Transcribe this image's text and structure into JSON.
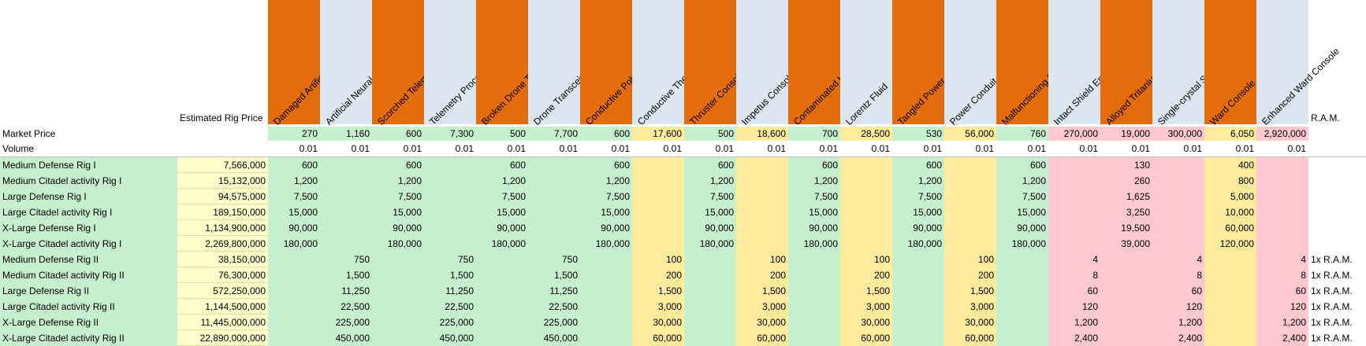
{
  "colors": {
    "orange": "#e46c0a",
    "lightblue": "#dce6f1",
    "green": "#c6efce",
    "yellow": "#ffeb9c",
    "pink": "#ffc7ce",
    "lightyellow": "#ffffcc"
  },
  "header": {
    "estimated_label": "Estimated Rig Price",
    "ram_label": "R.A.M.",
    "market_price_label": "Market Price",
    "volume_label": "Volume"
  },
  "columns": [
    {
      "name": "Damaged Artificial Neural Network",
      "head": "orange",
      "price": "270",
      "price_color": "green",
      "volume": "0.01",
      "body": "green"
    },
    {
      "name": "Artificial Neural Network",
      "head": "lightblue",
      "price": "1,160",
      "price_color": "green",
      "volume": "0.01",
      "body": "green"
    },
    {
      "name": "Scorched Telemetry Processor",
      "head": "orange",
      "price": "600",
      "price_color": "green",
      "volume": "0.01",
      "body": "green"
    },
    {
      "name": "Telemetry Processor",
      "head": "lightblue",
      "price": "7,300",
      "price_color": "green",
      "volume": "0.01",
      "body": "green"
    },
    {
      "name": "Broken Drone Transceiver",
      "head": "orange",
      "price": "500",
      "price_color": "green",
      "volume": "0.01",
      "body": "green"
    },
    {
      "name": "Drone Transceiver",
      "head": "lightblue",
      "price": "7,700",
      "price_color": "green",
      "volume": "0.01",
      "body": "green"
    },
    {
      "name": "Conductive Polymer",
      "head": "orange",
      "price": "600",
      "price_color": "green",
      "volume": "0.01",
      "body": "green"
    },
    {
      "name": "Conductive Thermoplastic",
      "head": "lightblue",
      "price": "17,600",
      "price_color": "yellow",
      "volume": "0.01",
      "body": "yellow"
    },
    {
      "name": "Thruster Console",
      "head": "orange",
      "price": "500",
      "price_color": "green",
      "volume": "0.01",
      "body": "green"
    },
    {
      "name": "Impetus Console",
      "head": "lightblue",
      "price": "18,600",
      "price_color": "yellow",
      "volume": "0.01",
      "body": "yellow"
    },
    {
      "name": "Contaminated Lorentz Fluid",
      "head": "orange",
      "price": "700",
      "price_color": "green",
      "volume": "0.01",
      "body": "green"
    },
    {
      "name": "Lorentz Fluid",
      "head": "lightblue",
      "price": "28,500",
      "price_color": "yellow",
      "volume": "0.01",
      "body": "yellow"
    },
    {
      "name": "Tangled Power Conduit",
      "head": "orange",
      "price": "530",
      "price_color": "green",
      "volume": "0.01",
      "body": "green"
    },
    {
      "name": "Power Conduit",
      "head": "lightblue",
      "price": "56,000",
      "price_color": "yellow",
      "volume": "0.01",
      "body": "yellow"
    },
    {
      "name": "Malfunctioning Shield Emitter",
      "head": "orange",
      "price": "760",
      "price_color": "green",
      "volume": "0.01",
      "body": "green"
    },
    {
      "name": "Intact Shield Emitter",
      "head": "lightblue",
      "price": "270,000",
      "price_color": "pink",
      "volume": "0.01",
      "body": "pink"
    },
    {
      "name": "Alloyed Tritanium Bar",
      "head": "orange",
      "price": "19,000",
      "price_color": "pink",
      "volume": "0.01",
      "body": "pink"
    },
    {
      "name": "Single-crystal Superalloy I-beam",
      "head": "lightblue",
      "price": "300,000",
      "price_color": "pink",
      "volume": "0.01",
      "body": "pink"
    },
    {
      "name": "Ward Console",
      "head": "orange",
      "price": "6,050",
      "price_color": "yellow",
      "volume": "0.01",
      "body": "yellow"
    },
    {
      "name": "Enhanced Ward Console",
      "head": "lightblue",
      "price": "2,920,000",
      "price_color": "pink",
      "volume": "0.01",
      "body": "pink"
    }
  ],
  "rows": [
    {
      "name": "Medium Defense Rig I",
      "price": "7,566,000",
      "cells": [
        "600",
        "",
        "600",
        "",
        "600",
        "",
        "600",
        "",
        "600",
        "",
        "600",
        "",
        "600",
        "",
        "600",
        "",
        "130",
        "",
        "400",
        ""
      ],
      "ram_qty": "",
      "ram_label": ""
    },
    {
      "name": "Medium Citadel activity Rig I",
      "price": "15,132,000",
      "cells": [
        "1,200",
        "",
        "1,200",
        "",
        "1,200",
        "",
        "1,200",
        "",
        "1,200",
        "",
        "1,200",
        "",
        "1,200",
        "",
        "1,200",
        "",
        "260",
        "",
        "800",
        ""
      ],
      "ram_qty": "",
      "ram_label": ""
    },
    {
      "name": "Large Defense Rig I",
      "price": "94,575,000",
      "cells": [
        "7,500",
        "",
        "7,500",
        "",
        "7,500",
        "",
        "7,500",
        "",
        "7,500",
        "",
        "7,500",
        "",
        "7,500",
        "",
        "7,500",
        "",
        "1,625",
        "",
        "5,000",
        ""
      ],
      "ram_qty": "",
      "ram_label": ""
    },
    {
      "name": "Large Citadel activity Rig I",
      "price": "189,150,000",
      "cells": [
        "15,000",
        "",
        "15,000",
        "",
        "15,000",
        "",
        "15,000",
        "",
        "15,000",
        "",
        "15,000",
        "",
        "15,000",
        "",
        "15,000",
        "",
        "3,250",
        "",
        "10,000",
        ""
      ],
      "ram_qty": "",
      "ram_label": ""
    },
    {
      "name": "X-Large Defense Rig I",
      "price": "1,134,900,000",
      "cells": [
        "90,000",
        "",
        "90,000",
        "",
        "90,000",
        "",
        "90,000",
        "",
        "90,000",
        "",
        "90,000",
        "",
        "90,000",
        "",
        "90,000",
        "",
        "19,500",
        "",
        "60,000",
        ""
      ],
      "ram_qty": "",
      "ram_label": ""
    },
    {
      "name": "X-Large Citadel activity Rig I",
      "price": "2,269,800,000",
      "cells": [
        "180,000",
        "",
        "180,000",
        "",
        "180,000",
        "",
        "180,000",
        "",
        "180,000",
        "",
        "180,000",
        "",
        "180,000",
        "",
        "180,000",
        "",
        "39,000",
        "",
        "120,000",
        ""
      ],
      "ram_qty": "",
      "ram_label": ""
    },
    {
      "name": "Medium Defense Rig II",
      "price": "38,150,000",
      "cells": [
        "",
        "750",
        "",
        "750",
        "",
        "750",
        "",
        "100",
        "",
        "100",
        "",
        "100",
        "",
        "100",
        "",
        "4",
        "",
        "4",
        "",
        "4"
      ],
      "ram_qty": "1x",
      "ram_label": "R.A.M."
    },
    {
      "name": "Medium Citadel activity Rig II",
      "price": "76,300,000",
      "cells": [
        "",
        "1,500",
        "",
        "1,500",
        "",
        "1,500",
        "",
        "200",
        "",
        "200",
        "",
        "200",
        "",
        "200",
        "",
        "8",
        "",
        "8",
        "",
        "8"
      ],
      "ram_qty": "1x",
      "ram_label": "R.A.M."
    },
    {
      "name": "Large Defense Rig II",
      "price": "572,250,000",
      "cells": [
        "",
        "11,250",
        "",
        "11,250",
        "",
        "11,250",
        "",
        "1,500",
        "",
        "1,500",
        "",
        "1,500",
        "",
        "1,500",
        "",
        "60",
        "",
        "60",
        "",
        "60"
      ],
      "ram_qty": "1x",
      "ram_label": "R.A.M."
    },
    {
      "name": "Large Citadel activity Rig II",
      "price": "1,144,500,000",
      "cells": [
        "",
        "22,500",
        "",
        "22,500",
        "",
        "22,500",
        "",
        "3,000",
        "",
        "3,000",
        "",
        "3,000",
        "",
        "3,000",
        "",
        "120",
        "",
        "120",
        "",
        "120"
      ],
      "ram_qty": "1x",
      "ram_label": "R.A.M."
    },
    {
      "name": "X-Large Defense Rig II",
      "price": "11,445,000,000",
      "cells": [
        "",
        "225,000",
        "",
        "225,000",
        "",
        "225,000",
        "",
        "30,000",
        "",
        "30,000",
        "",
        "30,000",
        "",
        "30,000",
        "",
        "1,200",
        "",
        "1,200",
        "",
        "1,200"
      ],
      "ram_qty": "1x",
      "ram_label": "R.A.M."
    },
    {
      "name": "X-Large Citadel activity Rig II",
      "price": "22,890,000,000",
      "cells": [
        "",
        "450,000",
        "",
        "450,000",
        "",
        "450,000",
        "",
        "60,000",
        "",
        "60,000",
        "",
        "60,000",
        "",
        "60,000",
        "",
        "2,400",
        "",
        "2,400",
        "",
        "2,400"
      ],
      "ram_qty": "1x",
      "ram_label": "R.A.M."
    }
  ]
}
